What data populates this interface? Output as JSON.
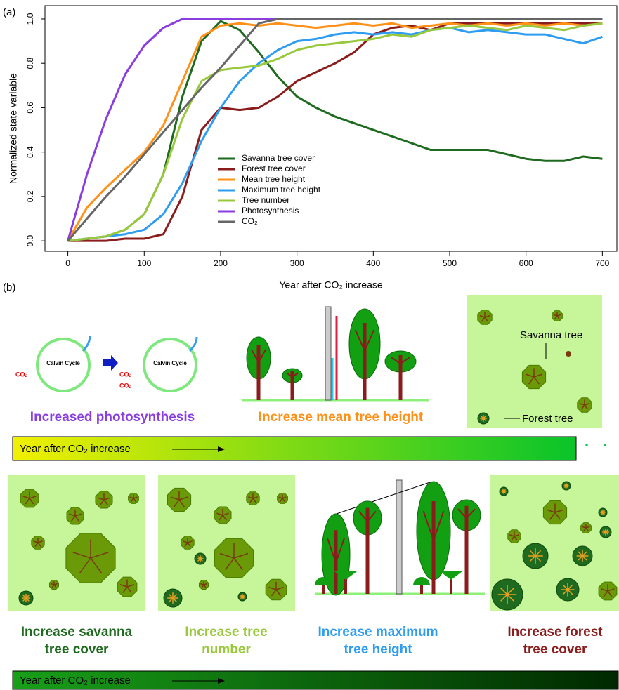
{
  "chart_data": {
    "type": "line",
    "panel_label": "(a)",
    "xlabel": "Year after CO₂ increase",
    "ylabel": "Normalized state variable",
    "x": [
      0,
      25,
      50,
      75,
      100,
      125,
      150,
      175,
      200,
      225,
      250,
      275,
      300,
      325,
      350,
      375,
      400,
      425,
      450,
      475,
      500,
      525,
      550,
      575,
      600,
      625,
      650,
      675,
      700
    ],
    "series": [
      {
        "name": "Savanna tree cover",
        "color": "#1e6a1e",
        "values": [
          0,
          0.01,
          0.02,
          0.05,
          0.12,
          0.3,
          0.65,
          0.9,
          0.99,
          0.95,
          0.85,
          0.74,
          0.65,
          0.6,
          0.56,
          0.53,
          0.5,
          0.47,
          0.44,
          0.41,
          0.41,
          0.41,
          0.41,
          0.39,
          0.37,
          0.36,
          0.36,
          0.38,
          0.37
        ]
      },
      {
        "name": "Forest tree cover",
        "color": "#8b1c1c",
        "values": [
          0,
          0,
          0,
          0.01,
          0.01,
          0.03,
          0.2,
          0.5,
          0.6,
          0.59,
          0.6,
          0.65,
          0.72,
          0.76,
          0.8,
          0.85,
          0.93,
          0.96,
          0.97,
          0.95,
          0.98,
          0.98,
          0.98,
          0.98,
          0.98,
          0.98,
          0.98,
          0.98,
          0.98
        ]
      },
      {
        "name": "Mean tree height",
        "color": "#ff9018",
        "values": [
          0,
          0.15,
          0.24,
          0.32,
          0.4,
          0.52,
          0.72,
          0.92,
          0.97,
          0.98,
          0.97,
          0.98,
          0.97,
          0.96,
          0.97,
          0.98,
          0.97,
          0.98,
          0.96,
          0.97,
          0.98,
          0.97,
          0.98,
          0.97,
          0.98,
          0.97,
          0.98,
          0.97,
          0.98
        ]
      },
      {
        "name": "Maximum tree height",
        "color": "#2e9cf0",
        "values": [
          0,
          0.01,
          0.02,
          0.03,
          0.05,
          0.12,
          0.26,
          0.45,
          0.6,
          0.72,
          0.8,
          0.86,
          0.9,
          0.91,
          0.93,
          0.94,
          0.93,
          0.94,
          0.93,
          0.95,
          0.96,
          0.94,
          0.95,
          0.94,
          0.93,
          0.93,
          0.91,
          0.89,
          0.92
        ]
      },
      {
        "name": "Tree number",
        "color": "#98c83c",
        "values": [
          0,
          0.01,
          0.02,
          0.05,
          0.12,
          0.3,
          0.55,
          0.72,
          0.77,
          0.78,
          0.79,
          0.82,
          0.86,
          0.88,
          0.89,
          0.9,
          0.91,
          0.93,
          0.92,
          0.95,
          0.96,
          0.97,
          0.96,
          0.95,
          0.97,
          0.96,
          0.95,
          0.97,
          0.98
        ]
      },
      {
        "name": "Photosynthesis",
        "color": "#8a3ee0",
        "values": [
          0,
          0.3,
          0.55,
          0.75,
          0.88,
          0.96,
          1,
          1,
          1,
          1,
          1,
          1,
          1,
          1,
          1,
          1,
          1,
          1,
          1,
          1,
          1,
          1,
          1,
          1,
          1,
          1,
          1,
          1,
          1
        ]
      },
      {
        "name": "CO₂",
        "color": "#666666",
        "values": [
          0,
          0.1,
          0.2,
          0.29,
          0.39,
          0.49,
          0.59,
          0.69,
          0.78,
          0.88,
          0.98,
          1,
          1,
          1,
          1,
          1,
          1,
          1,
          1,
          1,
          1,
          1,
          1,
          1,
          1,
          1,
          1,
          1,
          1
        ]
      }
    ],
    "xlim": [
      -30,
      719
    ],
    "ylim": [
      -0.047,
      1.06
    ],
    "xticks": [
      0,
      100,
      200,
      300,
      400,
      500,
      600,
      700
    ],
    "yticks": [
      {
        "value": 0,
        "label": "0.0"
      },
      {
        "value": 0.2,
        "label": "0.2"
      },
      {
        "value": 0.4,
        "label": "0.4"
      },
      {
        "value": 0.6,
        "label": "0.6"
      },
      {
        "value": 0.8,
        "label": "0.8"
      },
      {
        "value": 1,
        "label": "1.0"
      }
    ],
    "grid": false,
    "legend": "center"
  },
  "panel_b": {
    "label": "(b)",
    "calvin": "Calvin Cycle",
    "co2": "CO₂",
    "captions_top": [
      "Increased photosynthesis",
      "Increase mean tree height"
    ],
    "savanna_tree": "Savanna tree",
    "forest_tree": "Forest tree",
    "timeline": "Year after CO₂ increase",
    "captions_bottom": [
      [
        "Increase savanna",
        "tree cover"
      ],
      [
        "Increase tree",
        "number"
      ],
      [
        "Increase maximum",
        "tree height"
      ],
      [
        "Increase forest",
        "tree cover"
      ]
    ]
  }
}
